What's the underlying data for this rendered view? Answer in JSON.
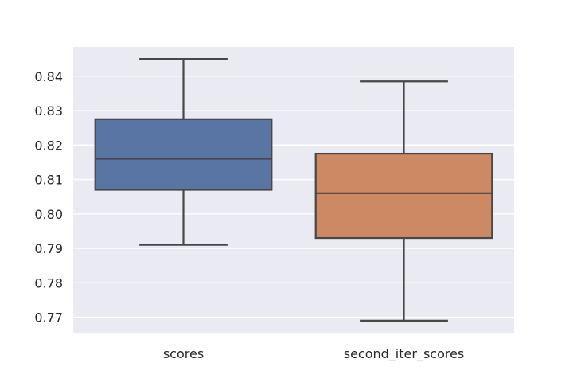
{
  "chart_data": {
    "type": "box",
    "title": "",
    "xlabel": "",
    "ylabel": "",
    "ylim": [
      0.7655,
      0.8485
    ],
    "yticks": [
      "0.77",
      "0.78",
      "0.79",
      "0.80",
      "0.81",
      "0.82",
      "0.83",
      "0.84"
    ],
    "grid": true,
    "background_color": "#eaeaf2",
    "categories": [
      "scores",
      "second_iter_scores"
    ],
    "series": [
      {
        "color": "#5975a4",
        "whisker_low": 0.791,
        "q1": 0.807,
        "median": 0.816,
        "q3": 0.8275,
        "whisker_high": 0.845
      },
      {
        "color": "#cc8963",
        "whisker_low": 0.769,
        "q1": 0.793,
        "median": 0.806,
        "q3": 0.8175,
        "whisker_high": 0.8385
      }
    ]
  }
}
